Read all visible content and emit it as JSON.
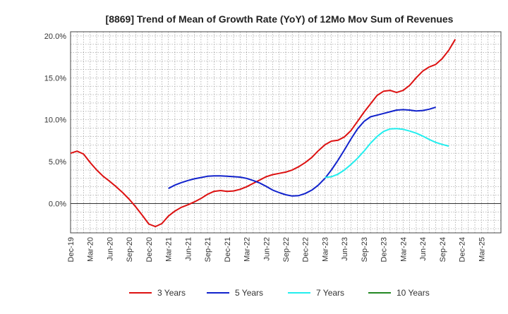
{
  "chart_data": {
    "type": "line",
    "title": "[8869]  Trend of Mean of Growth Rate (YoY) of 12Mo Mov Sum of Revenues",
    "xlabel": "",
    "ylabel": "",
    "ylim": [
      -3.5,
      20.5
    ],
    "xlim": [
      0,
      66
    ],
    "y_ticks": [
      0,
      5,
      10,
      15,
      20
    ],
    "y_tick_labels": [
      "0.0%",
      "5.0%",
      "10.0%",
      "15.0%",
      "20.0%"
    ],
    "x_tick_labels": [
      "Dec-19",
      "Mar-20",
      "Jun-20",
      "Sep-20",
      "Dec-20",
      "Mar-21",
      "Jun-21",
      "Sep-21",
      "Dec-21",
      "Mar-22",
      "Jun-22",
      "Sep-22",
      "Dec-22",
      "Mar-23",
      "Jun-23",
      "Sep-23",
      "Dec-23",
      "Mar-24",
      "Jun-24",
      "Sep-24",
      "Dec-24",
      "Mar-25"
    ],
    "grid": true,
    "legend_position": "bottom",
    "series": [
      {
        "name": "3 Years",
        "color": "#dd1111",
        "x_start": 0,
        "values": [
          6.0,
          6.25,
          5.9,
          4.9,
          4.0,
          3.25,
          2.65,
          2.0,
          1.3,
          0.5,
          -0.4,
          -1.4,
          -2.45,
          -2.75,
          -2.4,
          -1.5,
          -0.9,
          -0.45,
          -0.15,
          0.2,
          0.6,
          1.1,
          1.45,
          1.55,
          1.45,
          1.5,
          1.7,
          2.0,
          2.4,
          2.8,
          3.2,
          3.45,
          3.6,
          3.75,
          4.0,
          4.4,
          4.9,
          5.5,
          6.3,
          7.0,
          7.45,
          7.55,
          7.95,
          8.7,
          9.8,
          10.9,
          11.9,
          12.9,
          13.4,
          13.5,
          13.25,
          13.5,
          14.1,
          15.0,
          15.8,
          16.3,
          16.6,
          17.3,
          18.3,
          19.6
        ]
      },
      {
        "name": "5 Years",
        "color": "#1122cc",
        "x_start": 15,
        "values": [
          1.8,
          2.2,
          2.5,
          2.75,
          2.95,
          3.1,
          3.25,
          3.3,
          3.3,
          3.25,
          3.2,
          3.15,
          3.0,
          2.75,
          2.45,
          2.05,
          1.6,
          1.3,
          1.05,
          0.9,
          0.95,
          1.2,
          1.6,
          2.2,
          3.0,
          4.0,
          5.15,
          6.4,
          7.7,
          8.9,
          9.8,
          10.35,
          10.55,
          10.75,
          10.95,
          11.15,
          11.2,
          11.15,
          11.05,
          11.1,
          11.25,
          11.5
        ]
      },
      {
        "name": "7 Years",
        "color": "#22eeee",
        "x_start": 39,
        "values": [
          3.1,
          3.2,
          3.5,
          4.0,
          4.65,
          5.4,
          6.25,
          7.2,
          8.0,
          8.6,
          8.9,
          8.95,
          8.85,
          8.65,
          8.4,
          8.05,
          7.65,
          7.3,
          7.05,
          6.85
        ]
      },
      {
        "name": "10 Years",
        "color": "#228822",
        "x_start": 0,
        "values": []
      }
    ]
  }
}
